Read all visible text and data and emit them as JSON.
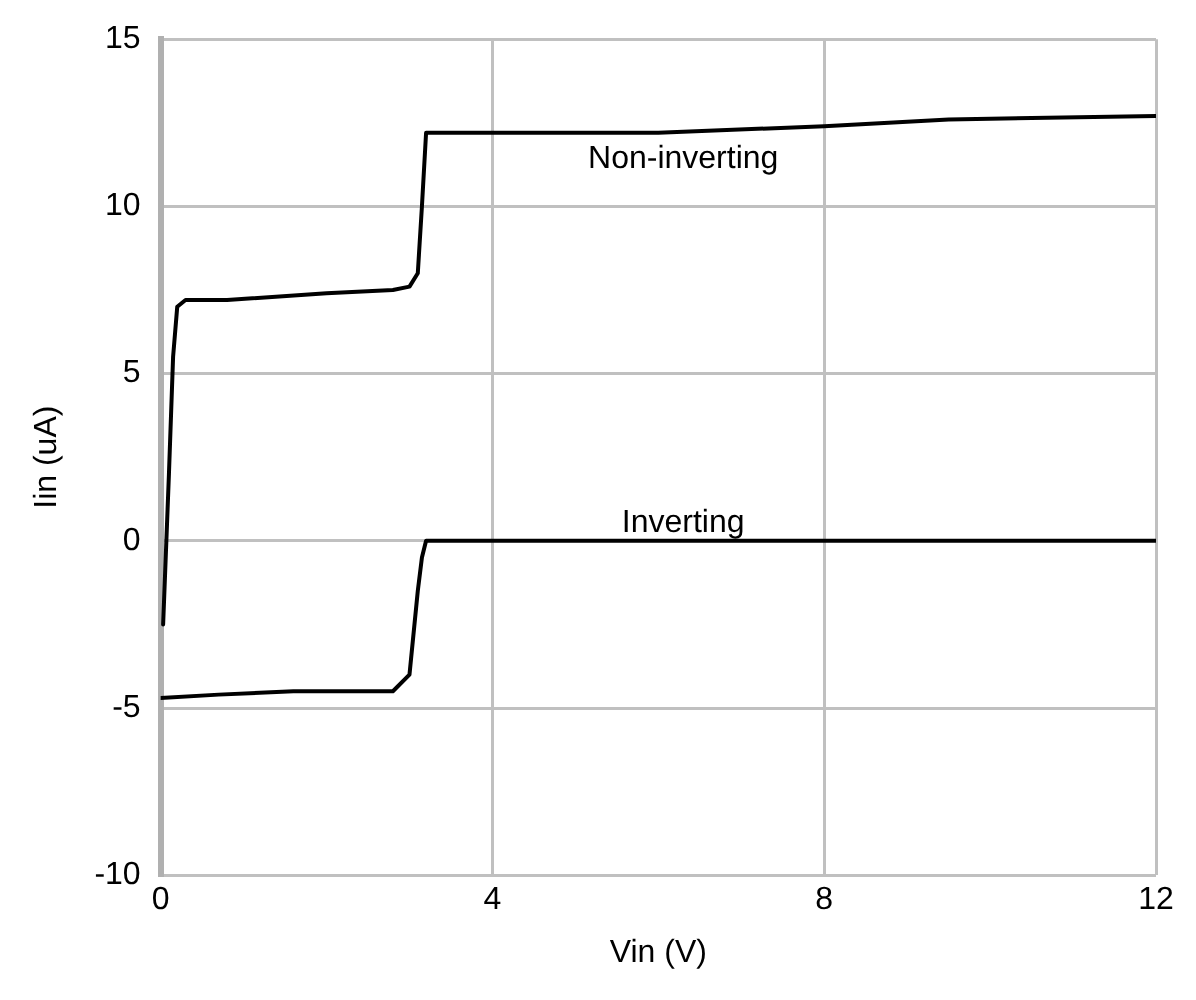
{
  "chart_data": {
    "type": "line",
    "xlabel": "Vin (V)",
    "ylabel": "Iin (uA)",
    "xlim": [
      0,
      12
    ],
    "xticks": [
      0,
      4,
      8,
      12
    ],
    "ylim": [
      -10,
      15
    ],
    "yticks": [
      -10,
      -5,
      0,
      5,
      10,
      15
    ],
    "grid": true,
    "legend": false,
    "marker": "none",
    "line_style": "solid",
    "series": [
      {
        "name": "Non-inverting",
        "color": "#000000",
        "x": [
          0.03,
          0.1,
          0.15,
          0.2,
          0.3,
          0.8,
          2,
          2.8,
          3.0,
          3.1,
          3.15,
          3.2,
          6,
          8,
          9.5,
          12
        ],
        "values": [
          -2.5,
          2,
          5.5,
          7,
          7.2,
          7.2,
          7.4,
          7.5,
          7.6,
          8,
          10,
          12.2,
          12.2,
          12.4,
          12.6,
          12.7
        ]
      },
      {
        "name": "Inverting",
        "color": "#000000",
        "x": [
          0,
          0.7,
          1.6,
          2.8,
          3.0,
          3.1,
          3.15,
          3.2,
          12
        ],
        "values": [
          -4.7,
          -4.6,
          -4.5,
          -4.5,
          -4,
          -1.5,
          -0.5,
          0,
          0
        ]
      }
    ]
  }
}
